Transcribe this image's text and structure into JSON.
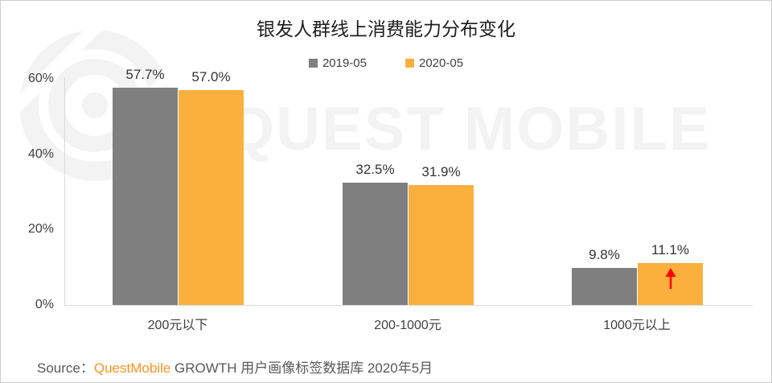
{
  "title": "银发人群线上消费能力分布变化",
  "watermark": {
    "text": "QUEST MOBILE",
    "logo": "questmobile-logo",
    "color": "#f3f3f3"
  },
  "legend": [
    {
      "label": "2019-05",
      "color": "#7f7f7f"
    },
    {
      "label": "2020-05",
      "color": "#fbb03d"
    }
  ],
  "chart_data": {
    "type": "bar",
    "title": "银发人群线上消费能力分布变化",
    "categories": [
      "200元以下",
      "200-1000元",
      "1000元以上"
    ],
    "series": [
      {
        "name": "2019-05",
        "color": "#7f7f7f",
        "values": [
          57.7,
          32.5,
          9.8
        ]
      },
      {
        "name": "2020-05",
        "color": "#fbb03d",
        "values": [
          57.0,
          31.9,
          11.1
        ]
      }
    ],
    "value_labels": [
      [
        "57.7%",
        "57.0%"
      ],
      [
        "32.5%",
        "31.9%"
      ],
      [
        "9.8%",
        "11.1%"
      ]
    ],
    "y_ticks": [
      {
        "label": "0%",
        "value": 0
      },
      {
        "label": "20%",
        "value": 20
      },
      {
        "label": "40%",
        "value": 40
      },
      {
        "label": "60%",
        "value": 60
      }
    ],
    "ylim": [
      0,
      60
    ],
    "grid": false,
    "legend_position": "top",
    "annotations": [
      {
        "type": "arrow-up",
        "category_index": 2,
        "series_index": 1,
        "color": "#ff0000"
      }
    ]
  },
  "source": {
    "segments": [
      {
        "text": "Source：",
        "color": "#595959"
      },
      {
        "text": "QuestMobile",
        "color": "#f7941e"
      },
      {
        "text": " GROWTH 用户画像标签数据库 2020年5月",
        "color": "#595959"
      }
    ]
  }
}
